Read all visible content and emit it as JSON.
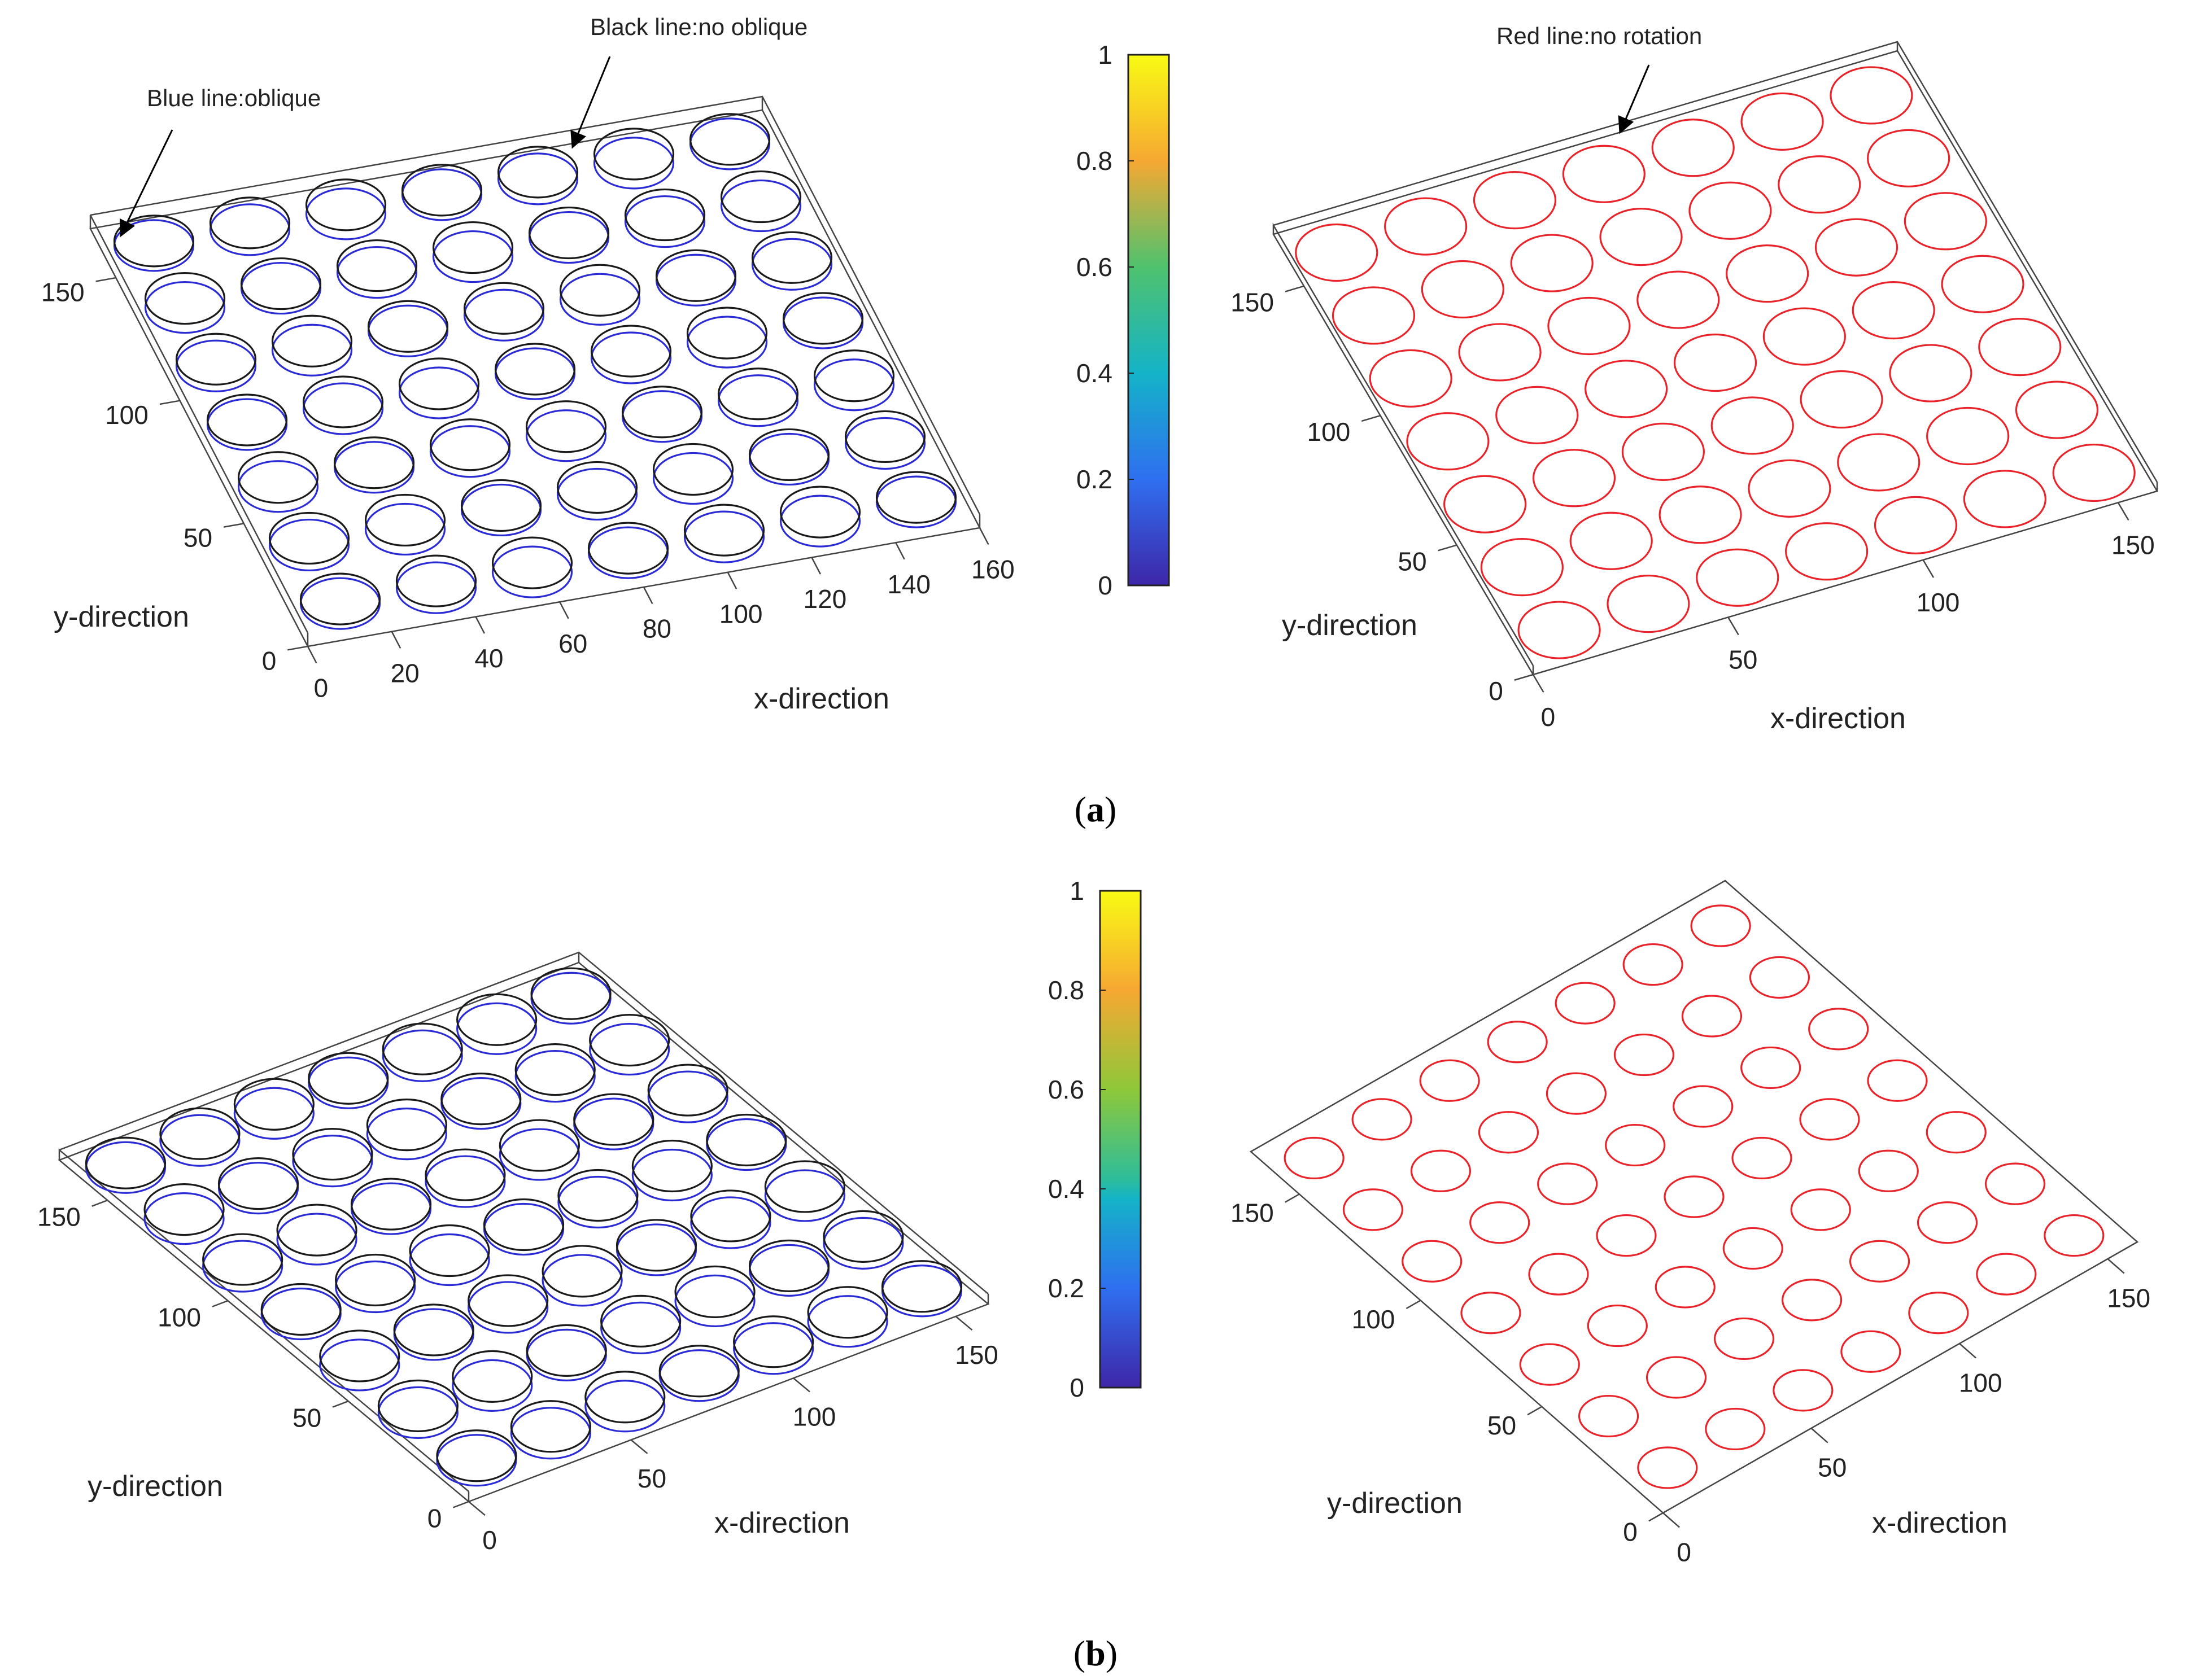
{
  "figure": {
    "panel_labels": [
      "(a)",
      "(b)"
    ],
    "panel_label_parts": {
      "a": {
        "open": "(",
        "letter": "a",
        "close": ")"
      },
      "b": {
        "open": "(",
        "letter": "b",
        "close": ")"
      }
    }
  },
  "colors": {
    "oblique": "#2b2bd6",
    "no_oblique": "#1a1a1a",
    "no_rotation": "#e8242a",
    "box": "#444444"
  },
  "chart_data": [
    {
      "id": "a-left",
      "type": "3d-circle-array",
      "grid": {
        "rows": 7,
        "cols": 7,
        "x_range": [
          0,
          160
        ],
        "y_range": [
          0,
          170
        ]
      },
      "xlabel": "x-direction",
      "ylabel": "y-direction",
      "xticks": [
        "0",
        "20",
        "40",
        "60",
        "80",
        "100",
        "120",
        "140",
        "160"
      ],
      "yticks": [
        "0",
        "50",
        "100",
        "150"
      ],
      "series": [
        {
          "name": "oblique",
          "color": "#2b2bd6"
        },
        {
          "name": "no oblique",
          "color": "#1a1a1a"
        }
      ],
      "annotations": [
        "Blue line:oblique",
        "Black line:no oblique"
      ]
    },
    {
      "id": "a-colorbar",
      "type": "colorbar",
      "ticks": [
        "0",
        "0.2",
        "0.4",
        "0.6",
        "0.8",
        "1"
      ],
      "range": [
        0,
        1
      ]
    },
    {
      "id": "a-right",
      "type": "3d-circle-array",
      "grid": {
        "rows": 7,
        "cols": 7,
        "x_range": [
          0,
          160
        ],
        "y_range": [
          0,
          170
        ]
      },
      "xlabel": "x-direction",
      "ylabel": "y-direction",
      "xticks": [
        "0",
        "50",
        "100",
        "150"
      ],
      "yticks": [
        "0",
        "50",
        "100",
        "150"
      ],
      "series": [
        {
          "name": "no rotation",
          "color": "#e8242a"
        }
      ],
      "annotations": [
        "Red line:no rotation"
      ]
    },
    {
      "id": "b-left",
      "type": "3d-circle-array",
      "grid": {
        "rows": 7,
        "cols": 7,
        "x_range": [
          0,
          160
        ],
        "y_range": [
          0,
          170
        ]
      },
      "xlabel": "x-direction",
      "ylabel": "y-direction",
      "xticks": [
        "0",
        "50",
        "100",
        "150"
      ],
      "yticks": [
        "0",
        "50",
        "100",
        "150"
      ],
      "series": [
        {
          "name": "oblique",
          "color": "#2b2bd6"
        },
        {
          "name": "no oblique",
          "color": "#1a1a1a"
        }
      ]
    },
    {
      "id": "b-colorbar",
      "type": "colorbar",
      "ticks": [
        "0",
        "0.2",
        "0.4",
        "0.6",
        "0.8",
        "1"
      ],
      "range": [
        0,
        1
      ]
    },
    {
      "id": "b-right",
      "type": "3d-circle-array",
      "grid": {
        "rows": 7,
        "cols": 7,
        "x_range": [
          0,
          160
        ],
        "y_range": [
          0,
          170
        ]
      },
      "xlabel": "x-direction",
      "ylabel": "y-direction",
      "xticks": [
        "0",
        "50",
        "100",
        "150"
      ],
      "yticks": [
        "0",
        "50",
        "100",
        "150"
      ],
      "series": [
        {
          "name": "no rotation",
          "color": "#e8242a"
        }
      ]
    }
  ]
}
